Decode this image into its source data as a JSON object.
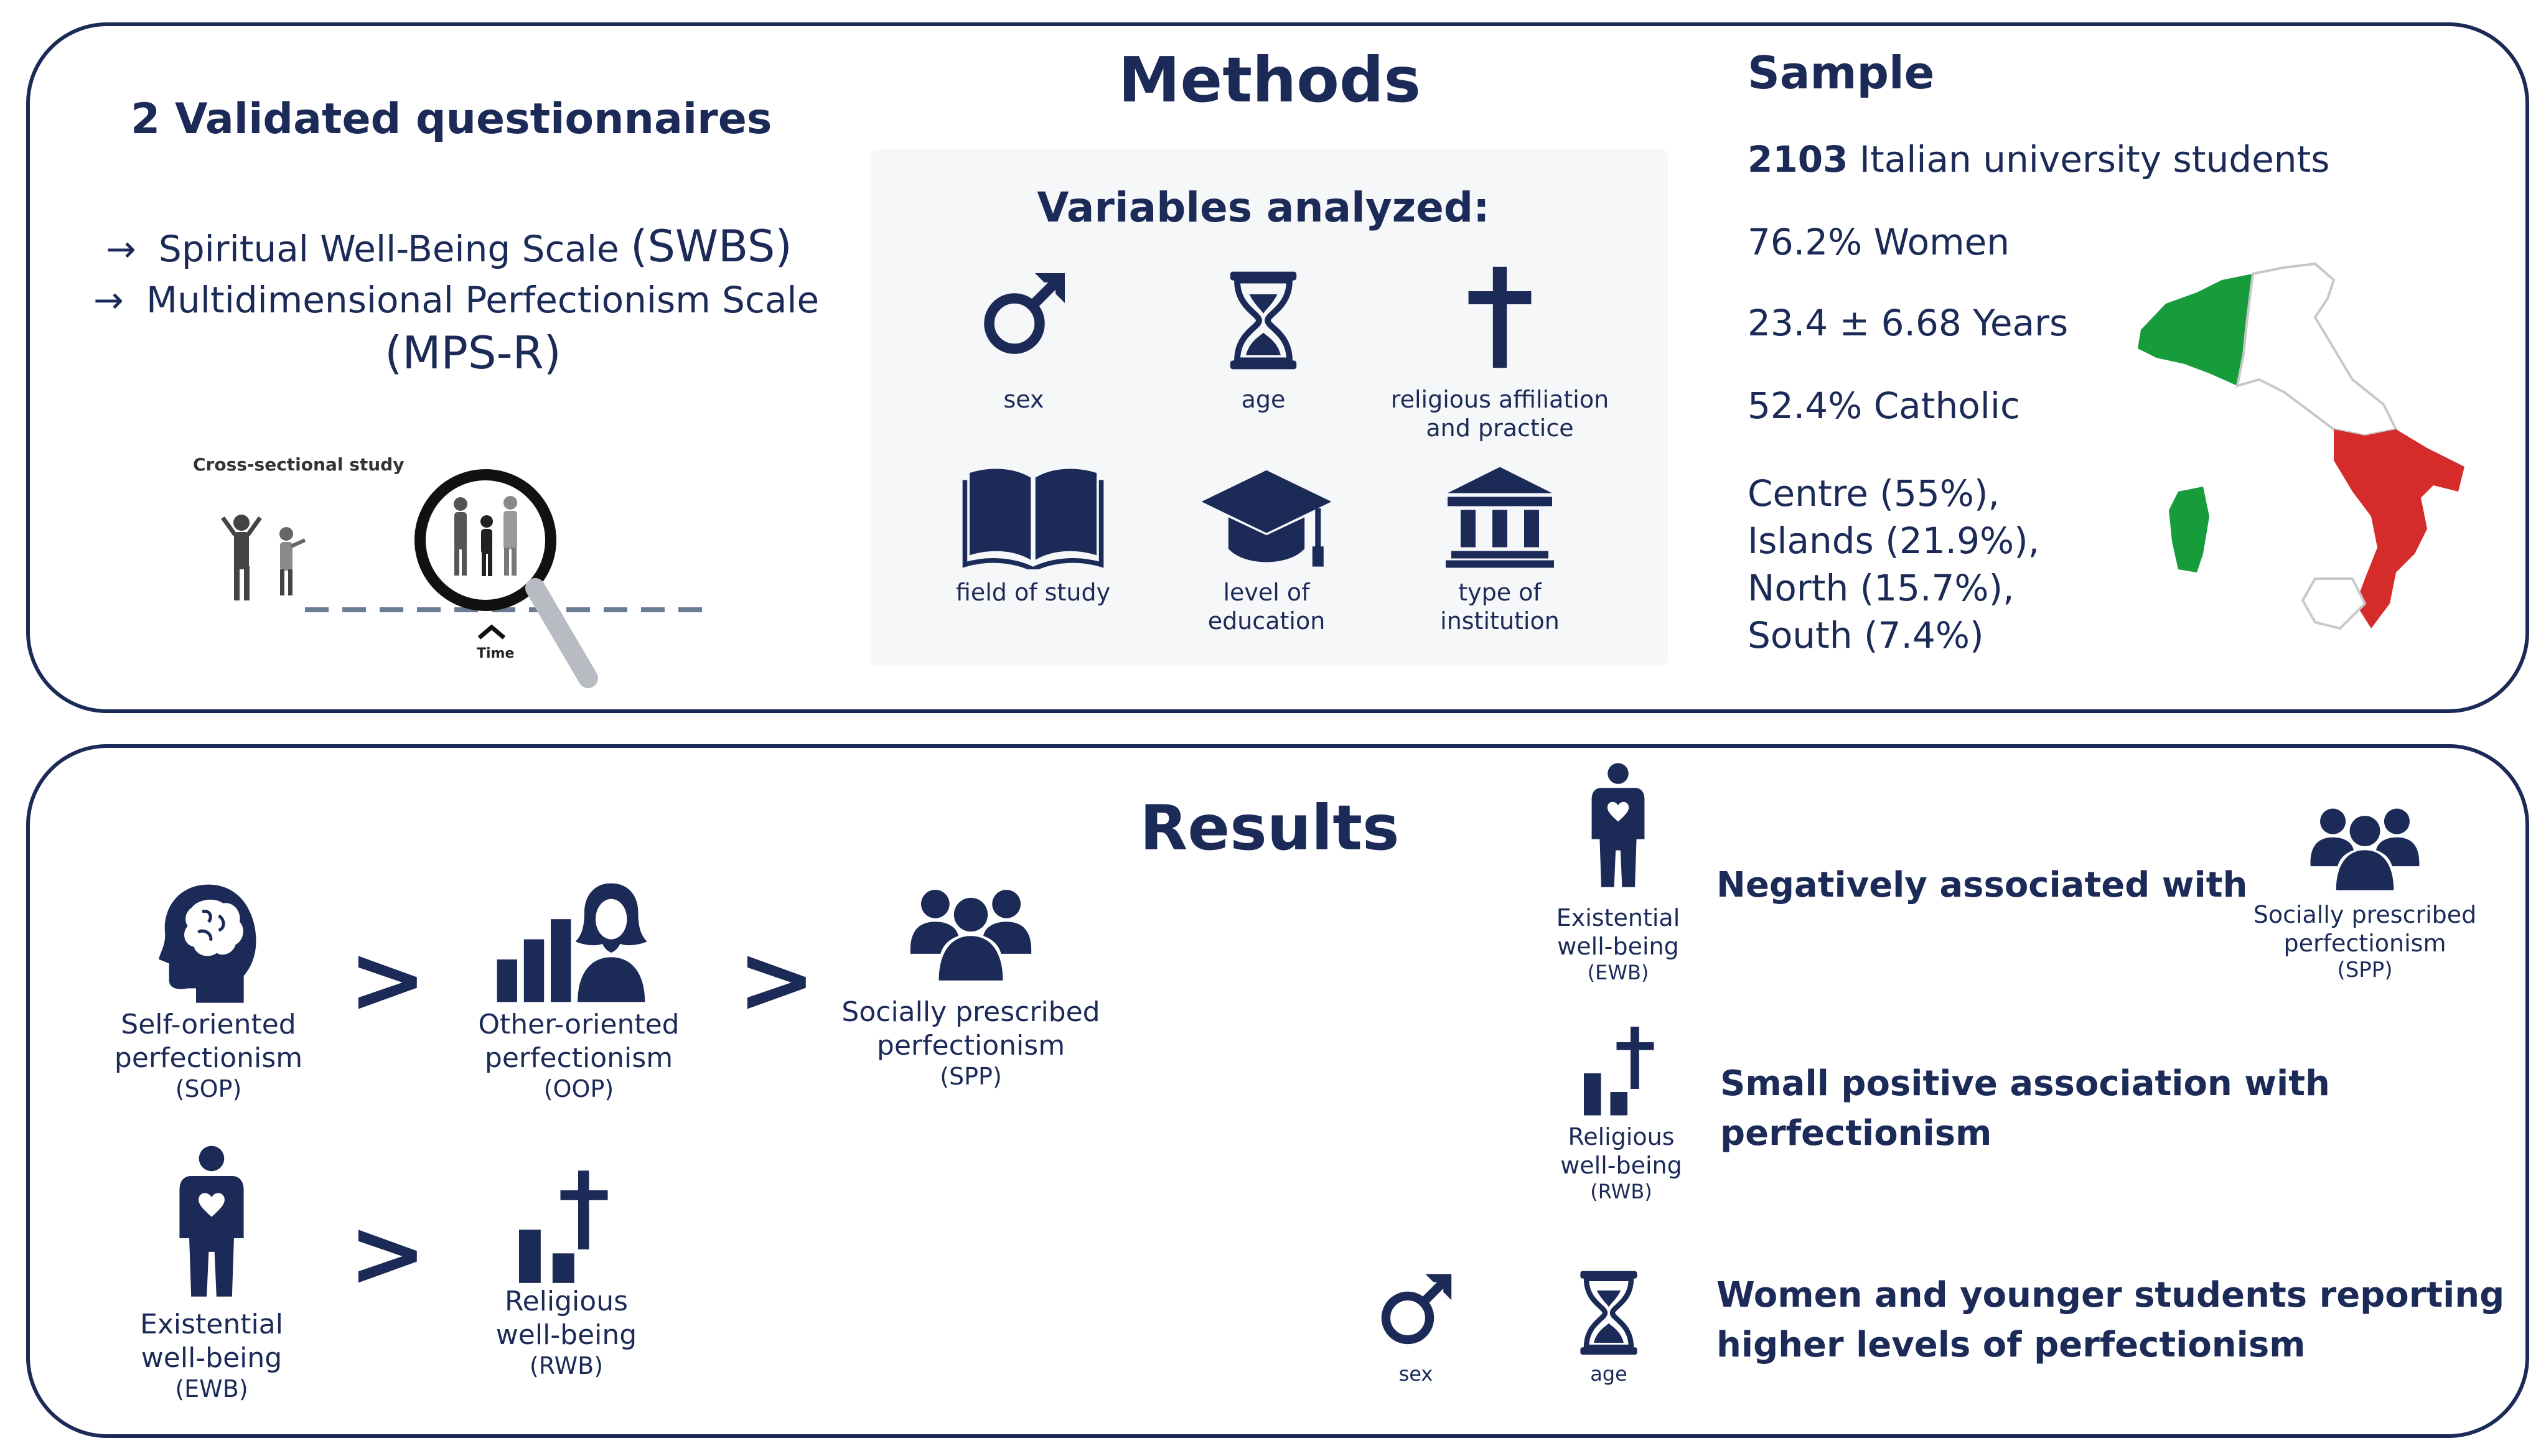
{
  "methods": {
    "title": "Methods",
    "questionnaires": {
      "heading": "2 Validated questionnaires",
      "items": [
        {
          "arrow": "→",
          "name": "Spiritual Well-Being Scale",
          "abbr": "(SWBS)"
        },
        {
          "arrow": "→",
          "name": "Multidimensional Perfectionism Scale",
          "abbr": "(MPS-R)"
        }
      ],
      "study_label": "Cross-sectional study",
      "time_label": "Time"
    },
    "variables": {
      "heading": "Variables analyzed:",
      "items": [
        {
          "icon": "male-symbol-icon",
          "label": "sex"
        },
        {
          "icon": "hourglass-icon",
          "label": "age"
        },
        {
          "icon": "cross-icon",
          "label_line1": "religious affiliation",
          "label_line2": "and practice"
        },
        {
          "icon": "book-icon",
          "label": "field of study"
        },
        {
          "icon": "graduation-cap-icon",
          "label_line1": "level of",
          "label_line2": "education"
        },
        {
          "icon": "institution-icon",
          "label_line1": "type of",
          "label_line2": "institution"
        }
      ]
    },
    "sample": {
      "heading": "Sample",
      "n_value": "2103",
      "n_text": "Italian university students",
      "women": "76.2% Women",
      "age": "23.4 ± 6.68 Years",
      "catholic": "52.4% Catholic",
      "regions": [
        "Centre (55%),",
        "Islands (21.9%),",
        "North (15.7%),",
        "South (7.4%)"
      ],
      "map_colors": {
        "green": "#179c3c",
        "white": "#ffffff",
        "red": "#d52b2b"
      }
    }
  },
  "results": {
    "title": "Results",
    "ranking1": {
      "items": [
        {
          "icon": "head-brain-icon",
          "line1": "Self-oriented",
          "line2": "perfectionism",
          "abbr": "(SOP)"
        },
        {
          "icon": "person-bars-icon",
          "line1": "Other-oriented",
          "line2": "perfectionism",
          "abbr": "(OOP)"
        },
        {
          "icon": "group-icon",
          "line1": "Socially prescribed",
          "line2": "perfectionism",
          "abbr": "(SPP)"
        }
      ],
      "operator": ">"
    },
    "ranking2": {
      "items": [
        {
          "icon": "person-heart-icon",
          "line1": "Existential",
          "line2": "well-being",
          "abbr": "(EWB)"
        },
        {
          "icon": "bars-cross-icon",
          "line1": "Religious",
          "line2": "well-being",
          "abbr": "(RWB)"
        }
      ],
      "operator": ">"
    },
    "findings": [
      {
        "left": {
          "icon": "person-heart-icon",
          "line1": "Existential",
          "line2": "well-being",
          "abbr": "(EWB)"
        },
        "text": "Negatively associated with",
        "right": {
          "icon": "group-icon",
          "line1": "Socially prescribed",
          "line2": "perfectionism",
          "abbr": "(SPP)"
        }
      },
      {
        "left": {
          "icon": "bars-cross-icon",
          "line1": "Religious",
          "line2": "well-being",
          "abbr": "(RWB)"
        },
        "text_line1": "Small positive association with",
        "text_line2": "perfectionism"
      },
      {
        "icons": [
          {
            "icon": "male-symbol-icon",
            "label": "sex"
          },
          {
            "icon": "hourglass-icon",
            "label": "age"
          }
        ],
        "text_line1": "Women and younger students reporting",
        "text_line2": "higher levels of perfectionism"
      }
    ]
  },
  "colors": {
    "navy": "#1b2a57",
    "map_outline": "#c8c8c8"
  }
}
